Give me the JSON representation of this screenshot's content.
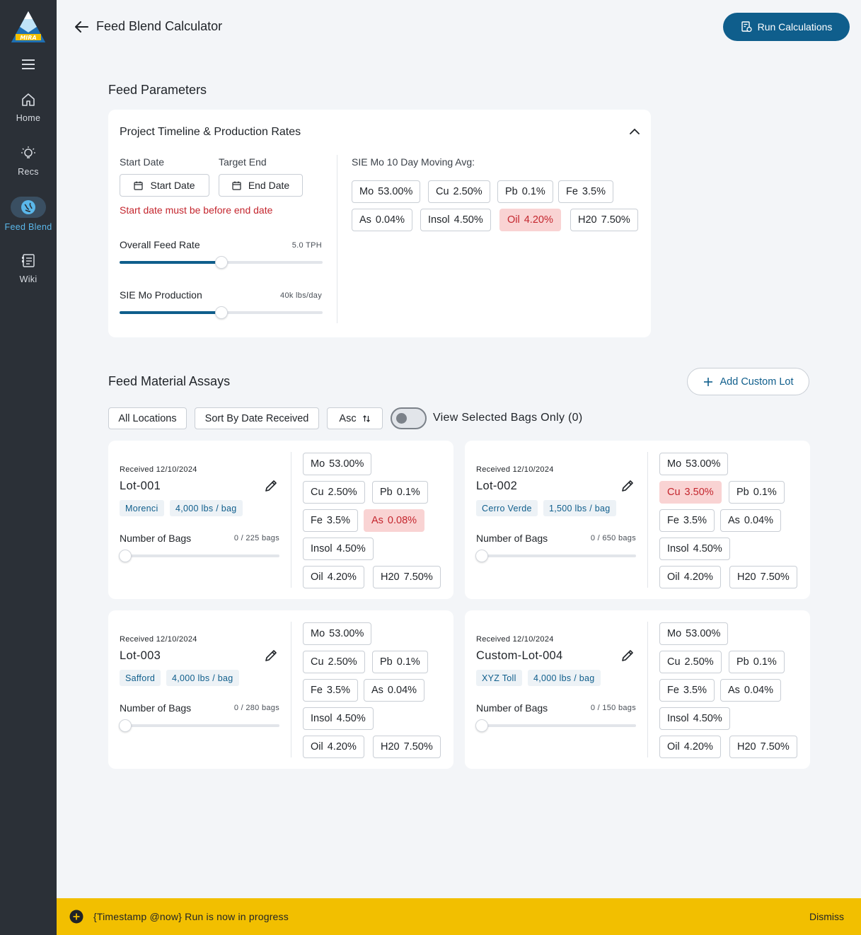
{
  "sidebar": {
    "logo_text": "MIRA",
    "items": [
      {
        "label": "Home",
        "icon": "home-icon"
      },
      {
        "label": "Recs",
        "icon": "lightbulb-icon"
      },
      {
        "label": "Feed Blend",
        "icon": "blend-icon",
        "active": true
      },
      {
        "label": "Wiki",
        "icon": "wiki-icon"
      }
    ]
  },
  "header": {
    "title": "Feed Blend Calculator",
    "run_label": "Run Calculations"
  },
  "params": {
    "section_title": "Feed Parameters",
    "card_title": "Project Timeline & Production Rates",
    "start_label": "Start Date",
    "end_label": "Target End",
    "start_btn": "Start Date",
    "end_btn": "End Date",
    "error": "Start date must be before end date",
    "feed_rate_label": "Overall Feed Rate",
    "feed_rate_value": "5.0 TPH",
    "feed_rate_fraction": 0.5,
    "production_label": "SIE Mo Production",
    "production_value": "40k lbs/day",
    "production_fraction": 0.5,
    "avg_label": "SIE Mo 10 Day Moving Avg:",
    "avg_chips": [
      {
        "el": "Mo",
        "val": "53.00%"
      },
      {
        "el": "Cu",
        "val": "2.50%"
      },
      {
        "el": "Pb",
        "val": "0.1%"
      },
      {
        "el": "Fe",
        "val": "3.5%"
      },
      {
        "el": "As",
        "val": "0.04%"
      },
      {
        "el": "Insol",
        "val": "4.50%"
      },
      {
        "el": "Oil",
        "val": "4.20%",
        "warn": true
      },
      {
        "el": "H20",
        "val": "7.50%"
      }
    ]
  },
  "assays": {
    "section_title": "Feed Material Assays",
    "add_lot": "Add Custom Lot",
    "filter_locations": "All Locations",
    "sort_label": "Sort By Date Received",
    "order_label": "Asc",
    "toggle_label": "View Selected Bags Only (0)",
    "bags_label": "Number of Bags",
    "lots": [
      {
        "received": "Received 12/10/2024",
        "name": "Lot-001",
        "location": "Morenci",
        "weight": "4,000 lbs / bag",
        "bags": "0 / 225 bags",
        "chips": [
          {
            "el": "Mo",
            "val": "53.00%"
          },
          {
            "el": "Cu",
            "val": "2.50%"
          },
          {
            "el": "Pb",
            "val": "0.1%"
          },
          {
            "el": "Fe",
            "val": "3.5%"
          },
          {
            "el": "As",
            "val": "0.08%",
            "warn": true
          },
          {
            "el": "Insol",
            "val": "4.50%"
          },
          {
            "el": "Oil",
            "val": "4.20%"
          },
          {
            "el": "H20",
            "val": "7.50%"
          }
        ]
      },
      {
        "received": "Received 12/10/2024",
        "name": "Lot-002",
        "location": "Cerro Verde",
        "weight": "1,500 lbs / bag",
        "bags": "0 / 650 bags",
        "chips": [
          {
            "el": "Mo",
            "val": "53.00%"
          },
          {
            "el": "Cu",
            "val": "3.50%",
            "warn": true
          },
          {
            "el": "Pb",
            "val": "0.1%"
          },
          {
            "el": "Fe",
            "val": "3.5%"
          },
          {
            "el": "As",
            "val": "0.04%"
          },
          {
            "el": "Insol",
            "val": "4.50%"
          },
          {
            "el": "Oil",
            "val": "4.20%"
          },
          {
            "el": "H20",
            "val": "7.50%"
          }
        ]
      },
      {
        "received": "Received 12/10/2024",
        "name": "Lot-003",
        "location": "Safford",
        "weight": "4,000 lbs / bag",
        "bags": "0 / 280 bags",
        "chips": [
          {
            "el": "Mo",
            "val": "53.00%"
          },
          {
            "el": "Cu",
            "val": "2.50%"
          },
          {
            "el": "Pb",
            "val": "0.1%"
          },
          {
            "el": "Fe",
            "val": "3.5%"
          },
          {
            "el": "As",
            "val": "0.04%"
          },
          {
            "el": "Insol",
            "val": "4.50%"
          },
          {
            "el": "Oil",
            "val": "4.20%"
          },
          {
            "el": "H20",
            "val": "7.50%"
          }
        ]
      },
      {
        "received": "Received 12/10/2024",
        "name": "Custom-Lot-004",
        "location": "XYZ Toll",
        "weight": "4,000 lbs / bag",
        "bags": "0 / 150 bags",
        "chips": [
          {
            "el": "Mo",
            "val": "53.00%"
          },
          {
            "el": "Cu",
            "val": "2.50%"
          },
          {
            "el": "Pb",
            "val": "0.1%"
          },
          {
            "el": "Fe",
            "val": "3.5%"
          },
          {
            "el": "As",
            "val": "0.04%"
          },
          {
            "el": "Insol",
            "val": "4.50%"
          },
          {
            "el": "Oil",
            "val": "4.20%"
          },
          {
            "el": "H20",
            "val": "7.50%"
          }
        ]
      }
    ]
  },
  "toast": {
    "message": "{Timestamp @now} Run is now in progress",
    "dismiss": "Dismiss"
  }
}
